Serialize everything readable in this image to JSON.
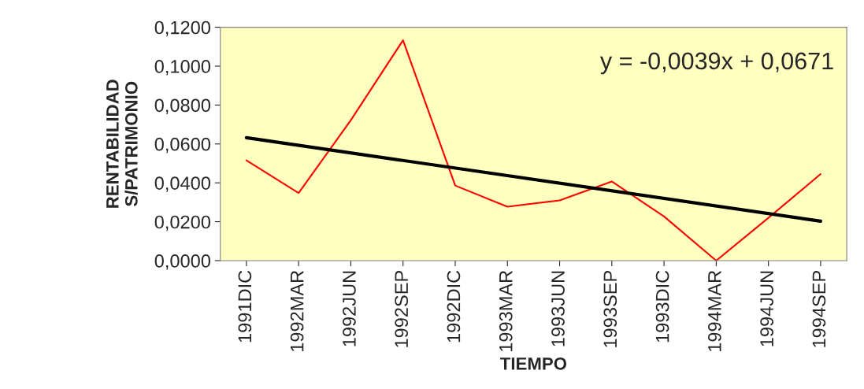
{
  "chart_data": {
    "type": "line",
    "xlabel": "TIEMPO",
    "ylabel": "RENTABILIDAD\nS/PATRIMONIO",
    "categories": [
      "1991DIC",
      "1992MAR",
      "1992JUN",
      "1992SEP",
      "1992DIC",
      "1993MAR",
      "1993JUN",
      "1993SEP",
      "1993DIC",
      "1994MAR",
      "1994JUN",
      "1994SEP"
    ],
    "series": [
      {
        "color": "#ff0000",
        "values": [
          0.0516,
          0.0348,
          0.0722,
          0.1133,
          0.0386,
          0.0277,
          0.031,
          0.0407,
          0.0227,
          0.0,
          0.022,
          0.0445
        ]
      },
      {
        "type": "line",
        "color": "#000000",
        "x": [
          "1991DIC",
          "1994SEP"
        ],
        "values": [
          0.0632,
          0.0203
        ]
      }
    ],
    "ylim": [
      0,
      0.12
    ],
    "yticks": [
      {
        "value": 0,
        "label": "0,0000"
      },
      {
        "value": 0.02,
        "label": "0,0200"
      },
      {
        "value": 0.04,
        "label": "0,0400"
      },
      {
        "value": 0.06,
        "label": "0,0600"
      },
      {
        "value": 0.08,
        "label": "0,0800"
      },
      {
        "value": 0.1,
        "label": "0,1000"
      },
      {
        "value": 0.12,
        "label": "0,1200"
      }
    ],
    "annotations": [
      "y = -0,0039x + 0,0671"
    ],
    "grid": false,
    "legend": false,
    "marker": "none"
  }
}
